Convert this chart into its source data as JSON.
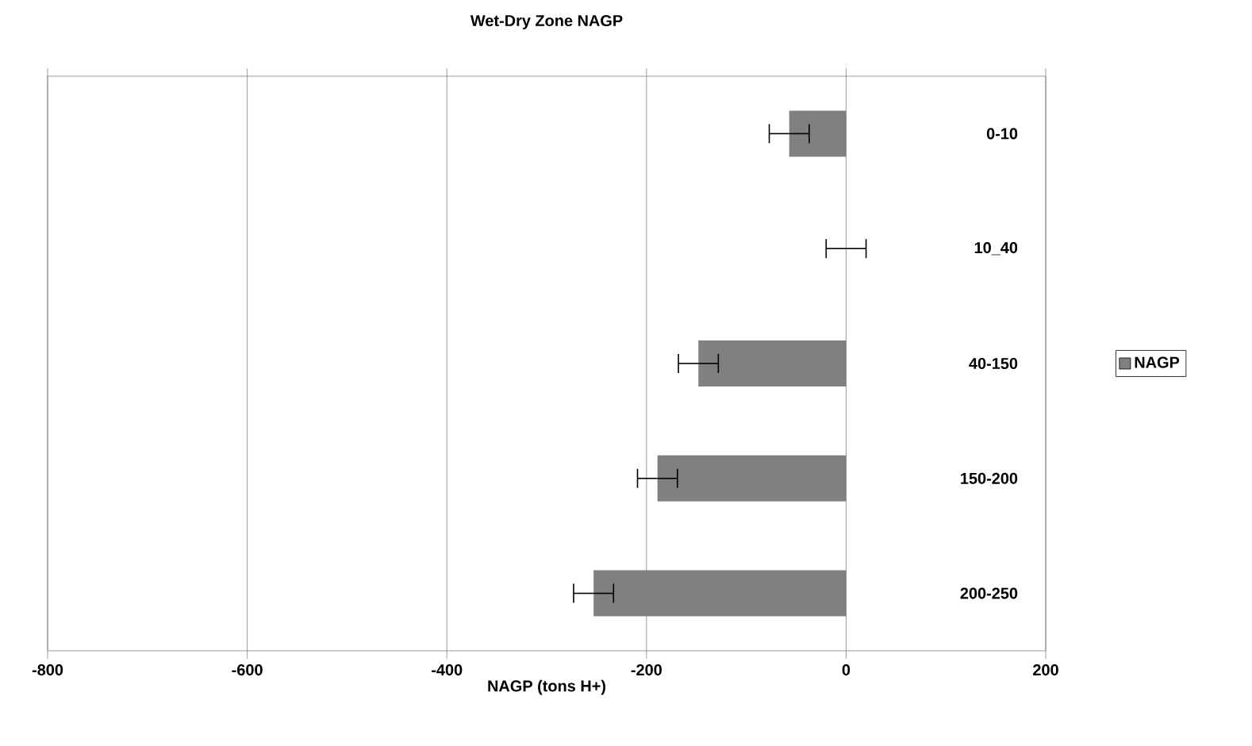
{
  "chart_data": {
    "type": "bar",
    "orientation": "horizontal",
    "title": "Wet-Dry Zone NAGP",
    "xlabel": "NAGP (tons H+)",
    "categories": [
      "0-10",
      "10_40",
      "40-150",
      "150-200",
      "200-250"
    ],
    "series": [
      {
        "name": "NAGP",
        "color": "#808080",
        "values": [
          -57,
          0,
          -148,
          -189,
          -253
        ],
        "errors": [
          20,
          20,
          20,
          20,
          20
        ]
      }
    ],
    "xlim": [
      -800,
      200
    ],
    "xticks": [
      -800,
      -600,
      -400,
      -200,
      0,
      200
    ],
    "grid": "x",
    "legend": "right"
  }
}
